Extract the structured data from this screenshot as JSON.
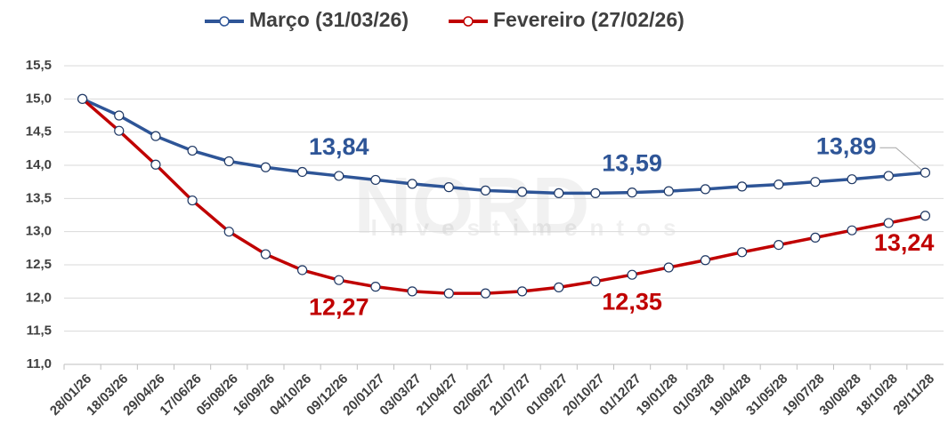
{
  "chart_data": {
    "type": "line",
    "watermark": [
      "NORD",
      "Investimentos"
    ],
    "categories": [
      "28/01/26",
      "18/03/26",
      "29/04/26",
      "17/06/26",
      "05/08/26",
      "16/09/26",
      "04/10/26",
      "09/12/26",
      "20/01/27",
      "03/03/27",
      "21/04/27",
      "02/06/27",
      "21/07/27",
      "01/09/27",
      "20/10/27",
      "01/12/27",
      "19/01/28",
      "01/03/28",
      "19/04/28",
      "31/05/28",
      "19/07/28",
      "30/08/28",
      "18/10/28",
      "29/11/28"
    ],
    "series": [
      {
        "name": "Março (31/03/26)",
        "color": "#2e5597",
        "values": [
          15.0,
          14.75,
          14.44,
          14.22,
          14.06,
          13.97,
          13.9,
          13.84,
          13.78,
          13.72,
          13.67,
          13.62,
          13.6,
          13.58,
          13.58,
          13.59,
          13.61,
          13.64,
          13.68,
          13.71,
          13.75,
          13.79,
          13.84,
          13.89
        ],
        "value_labels": [
          null,
          null,
          null,
          null,
          null,
          null,
          null,
          "13,84",
          null,
          null,
          null,
          null,
          null,
          null,
          null,
          "13,59",
          null,
          null,
          null,
          null,
          null,
          null,
          null,
          "13,89"
        ]
      },
      {
        "name": "Fevereiro (27/02/26)",
        "color": "#c00000",
        "values": [
          15.0,
          14.52,
          14.01,
          13.47,
          13.0,
          12.66,
          12.42,
          12.27,
          12.17,
          12.1,
          12.07,
          12.07,
          12.1,
          12.16,
          12.25,
          12.35,
          12.46,
          12.57,
          12.69,
          12.8,
          12.91,
          13.02,
          13.13,
          13.24
        ],
        "value_labels": [
          null,
          null,
          null,
          null,
          null,
          null,
          null,
          "12,27",
          null,
          null,
          null,
          null,
          null,
          null,
          null,
          "12,35",
          null,
          null,
          null,
          null,
          null,
          null,
          null,
          "13,24"
        ]
      }
    ],
    "ylim": [
      11.0,
      15.5
    ],
    "yticks": [
      {
        "value": 11.0,
        "label": "11,0"
      },
      {
        "value": 11.5,
        "label": "11,5"
      },
      {
        "value": 12.0,
        "label": "12,0"
      },
      {
        "value": 12.5,
        "label": "12,5"
      },
      {
        "value": 13.0,
        "label": "13,0"
      },
      {
        "value": 13.5,
        "label": "13,5"
      },
      {
        "value": 14.0,
        "label": "14,0"
      },
      {
        "value": 14.5,
        "label": "14,5"
      },
      {
        "value": 15.0,
        "label": "15,0"
      },
      {
        "value": 15.5,
        "label": "15,5"
      }
    ],
    "grid": true
  }
}
